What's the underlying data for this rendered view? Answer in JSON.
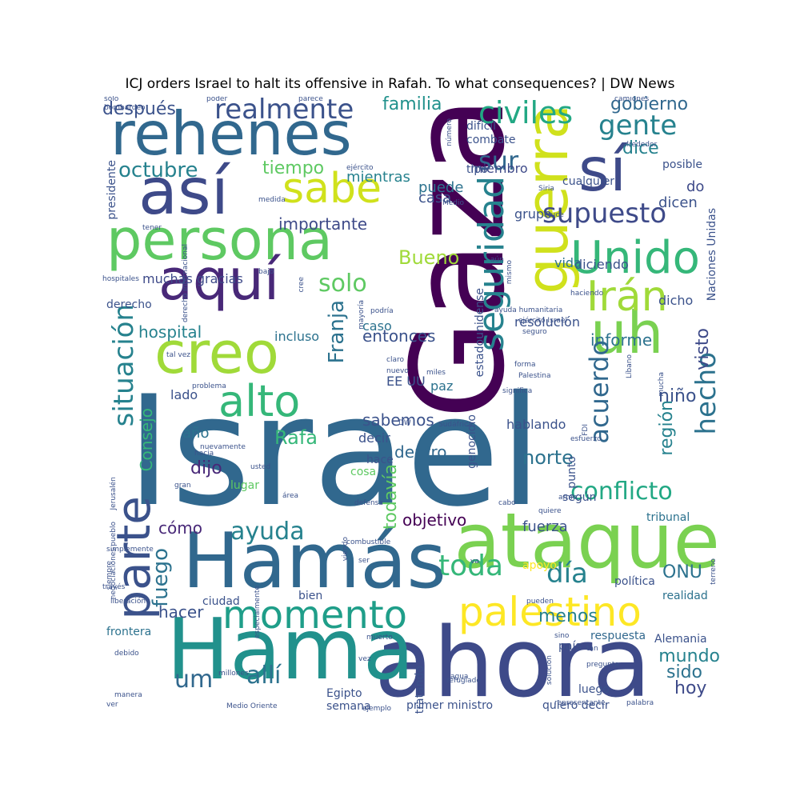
{
  "title": "ICJ orders Israel to halt its offensive in Rafah. To what consequences? | DW News",
  "words": [
    {
      "text": "Israel",
      "color": "#31688e"
    },
    {
      "text": "Gaza",
      "color": "#440154"
    },
    {
      "text": "ahora",
      "color": "#3e4a89"
    },
    {
      "text": "Hama",
      "color": "#21918c"
    },
    {
      "text": "Hamás",
      "color": "#31688e"
    },
    {
      "text": "ataque",
      "color": "#7ad151"
    },
    {
      "text": "rehenes",
      "color": "#31688e"
    },
    {
      "text": "persona",
      "color": "#5ec962"
    },
    {
      "text": "así",
      "color": "#3e4a89"
    },
    {
      "text": "sí",
      "color": "#3e4a89"
    },
    {
      "text": "parte",
      "color": "#3b528b"
    },
    {
      "text": "creo",
      "color": "#a0da39"
    },
    {
      "text": "aquí",
      "color": "#482878"
    },
    {
      "text": "guerra",
      "color": "#d0e11c"
    },
    {
      "text": "uh",
      "color": "#7ad151"
    },
    {
      "text": "momento",
      "color": "#1f9e89"
    },
    {
      "text": "palestino",
      "color": "#fde725"
    },
    {
      "text": "Unido",
      "color": "#35b779"
    },
    {
      "text": "seguridad",
      "color": "#26828e"
    },
    {
      "text": "Irán",
      "color": "#a0da39"
    },
    {
      "text": "alto",
      "color": "#35b779"
    },
    {
      "text": "sabe",
      "color": "#d0e11c"
    },
    {
      "text": "civiles",
      "color": "#22a884"
    },
    {
      "text": "realmente",
      "color": "#3b528b"
    },
    {
      "text": "supuesto",
      "color": "#3e4a89"
    },
    {
      "text": "gente",
      "color": "#26828e"
    },
    {
      "text": "situación",
      "color": "#26828e"
    },
    {
      "text": "hecho",
      "color": "#2c728e"
    },
    {
      "text": "acuerdo",
      "color": "#31688e"
    },
    {
      "text": "conflicto",
      "color": "#22a884"
    },
    {
      "text": "ayuda",
      "color": "#26828e"
    },
    {
      "text": "toda",
      "color": "#35b779"
    },
    {
      "text": "día",
      "color": "#26828e"
    },
    {
      "text": "allí",
      "color": "#2c728e"
    },
    {
      "text": "um",
      "color": "#31688e"
    },
    {
      "text": "Franja",
      "color": "#2c728e"
    },
    {
      "text": "Consejo",
      "color": "#35b779"
    },
    {
      "text": "fuego",
      "color": "#2c728e"
    },
    {
      "text": "solo",
      "color": "#5ec962"
    },
    {
      "text": "sur",
      "color": "#31688e"
    },
    {
      "text": "Bueno",
      "color": "#a0da39"
    },
    {
      "text": "octubre",
      "color": "#26828e"
    },
    {
      "text": "Rafa",
      "color": "#35b779"
    },
    {
      "text": "después",
      "color": "#3b528b"
    },
    {
      "text": "familia",
      "color": "#21918c"
    },
    {
      "text": "gobierno",
      "color": "#31688e"
    },
    {
      "text": "dice",
      "color": "#26828e"
    },
    {
      "text": "tiempo",
      "color": "#5ec962"
    },
    {
      "text": "todavía",
      "color": "#5ec962"
    },
    {
      "text": "visto",
      "color": "#3e4a89"
    },
    {
      "text": "región",
      "color": "#26828e"
    },
    {
      "text": "norte",
      "color": "#2c728e"
    },
    {
      "text": "dijo",
      "color": "#482878"
    },
    {
      "text": "ONU",
      "color": "#2c728e"
    },
    {
      "text": "hoy",
      "color": "#3e4a89"
    },
    {
      "text": "sido",
      "color": "#2c728e"
    },
    {
      "text": "mundo",
      "color": "#26828e"
    },
    {
      "text": "menos",
      "color": "#26828e"
    },
    {
      "text": "hacer",
      "color": "#3b528b"
    },
    {
      "text": "niño",
      "color": "#3b528b"
    },
    {
      "text": "informe",
      "color": "#2c728e"
    },
    {
      "text": "entonces",
      "color": "#3b528b"
    },
    {
      "text": "hospital",
      "color": "#26828e"
    },
    {
      "text": "importante",
      "color": "#3e4a89"
    },
    {
      "text": "objetivo",
      "color": "#440154"
    },
    {
      "text": "cómo",
      "color": "#482878"
    },
    {
      "text": "dentro",
      "color": "#31688e"
    },
    {
      "text": "sabemos",
      "color": "#3b528b"
    },
    {
      "text": "año",
      "color": "#2c728e"
    },
    {
      "text": "fuerza",
      "color": "#3b528b"
    },
    {
      "text": "do",
      "color": "#3e4a89"
    },
    {
      "text": "dicen",
      "color": "#3b528b"
    },
    {
      "text": "puede",
      "color": "#2c728e"
    },
    {
      "text": "casa",
      "color": "#3b528b"
    },
    {
      "text": "mientras",
      "color": "#26828e"
    },
    {
      "text": "muchas gracias",
      "color": "#3e4a89"
    },
    {
      "text": "miembro",
      "color": "#3e4a89"
    },
    {
      "text": "grupo",
      "color": "#3b528b"
    },
    {
      "text": "diciendo",
      "color": "#3b528b"
    },
    {
      "text": "vida",
      "color": "#2c728e"
    },
    {
      "text": "resolución",
      "color": "#3b528b"
    },
    {
      "text": "dicho",
      "color": "#3b528b"
    },
    {
      "text": "incluso",
      "color": "#2c728e"
    },
    {
      "text": "caso",
      "color": "#2c728e"
    },
    {
      "text": "EE UU",
      "color": "#3b528b"
    },
    {
      "text": "paz",
      "color": "#2c728e"
    },
    {
      "text": "lado",
      "color": "#3b528b"
    },
    {
      "text": "hablando",
      "color": "#3b528b"
    },
    {
      "text": "decir",
      "color": "#3b528b"
    },
    {
      "text": "hace",
      "color": "#3b528b"
    },
    {
      "text": "cosa",
      "color": "#5ec962"
    },
    {
      "text": "ciudad",
      "color": "#3b528b"
    },
    {
      "text": "bien",
      "color": "#3b528b"
    },
    {
      "text": "respuesta",
      "color": "#31688e"
    },
    {
      "text": "Alemania",
      "color": "#3b528b"
    },
    {
      "text": "política",
      "color": "#3b528b"
    },
    {
      "text": "realidad",
      "color": "#2c728e"
    },
    {
      "text": "tribunal",
      "color": "#2c728e"
    },
    {
      "text": "según",
      "color": "#3b528b"
    },
    {
      "text": "lugar",
      "color": "#5ec962"
    },
    {
      "text": "derecho",
      "color": "#3b528b"
    },
    {
      "text": "frontera",
      "color": "#2c728e"
    },
    {
      "text": "Egipto",
      "color": "#3b528b"
    },
    {
      "text": "primer ministro",
      "color": "#3b528b"
    },
    {
      "text": "quiero decir",
      "color": "#3b528b"
    },
    {
      "text": "semana",
      "color": "#3b528b"
    },
    {
      "text": "tratando",
      "color": "#3b528b"
    },
    {
      "text": "país",
      "color": "#3b528b"
    },
    {
      "text": "luego",
      "color": "#3b528b"
    },
    {
      "text": "difícil",
      "color": "#3b528b"
    },
    {
      "text": "combate",
      "color": "#3b528b"
    },
    {
      "text": "tipo",
      "color": "#3b528b"
    },
    {
      "text": "cualquier",
      "color": "#3b528b"
    },
    {
      "text": "posible",
      "color": "#3b528b"
    },
    {
      "text": "Naciones Unidas",
      "color": "#3b528b"
    },
    {
      "text": "presidente",
      "color": "#3b528b"
    },
    {
      "text": "estadounidense",
      "color": "#3b528b"
    },
    {
      "text": "genocidio",
      "color": "#3b528b"
    },
    {
      "text": "punto",
      "color": "#3b528b"
    },
    {
      "text": "apoyo",
      "color": "#fde725"
    },
    {
      "text": "sólo",
      "color": "#3b528b"
    },
    {
      "text": "bombardeo",
      "color": "#3b528b"
    },
    {
      "text": "poder",
      "color": "#3b528b"
    },
    {
      "text": "parece",
      "color": "#3b528b"
    },
    {
      "text": "camiones",
      "color": "#3b528b"
    },
    {
      "text": "alrededor",
      "color": "#3b528b"
    },
    {
      "text": "número",
      "color": "#3b528b"
    },
    {
      "text": "ejército",
      "color": "#3b528b"
    },
    {
      "text": "medida",
      "color": "#3b528b"
    },
    {
      "text": "Medio",
      "color": "#3b528b"
    },
    {
      "text": "Siria",
      "color": "#3b528b"
    },
    {
      "text": "cruce",
      "color": "#3b528b"
    },
    {
      "text": "tener",
      "color": "#3b528b"
    },
    {
      "text": "derecho internacional",
      "color": "#3b528b"
    },
    {
      "text": "aún",
      "color": "#3b528b"
    },
    {
      "text": "mismo",
      "color": "#3b528b"
    },
    {
      "text": "hospitales",
      "color": "#3b528b"
    },
    {
      "text": "bajo",
      "color": "#3b528b"
    },
    {
      "text": "cree",
      "color": "#3b528b"
    },
    {
      "text": "podría",
      "color": "#3b528b"
    },
    {
      "text": "mayoría",
      "color": "#3b528b"
    },
    {
      "text": "ayuda humanitaria",
      "color": "#3b528b"
    },
    {
      "text": "haciendo",
      "color": "#3b528b"
    },
    {
      "text": "ejército Israel",
      "color": "#3b528b"
    },
    {
      "text": "seguro",
      "color": "#3b528b"
    },
    {
      "text": "tal vez",
      "color": "#3b528b"
    },
    {
      "text": "claro",
      "color": "#3b528b"
    },
    {
      "text": "nuevo",
      "color": "#3b528b"
    },
    {
      "text": "miles",
      "color": "#3b528b"
    },
    {
      "text": "forma",
      "color": "#3b528b"
    },
    {
      "text": "Palestina",
      "color": "#3b528b"
    },
    {
      "text": "Líbano",
      "color": "#3b528b"
    },
    {
      "text": "mucha",
      "color": "#3b528b"
    },
    {
      "text": "problema",
      "color": "#3b528b"
    },
    {
      "text": "significa",
      "color": "#3b528b"
    },
    {
      "text": "DW",
      "color": "#3b528b"
    },
    {
      "text": "Sudáfrica",
      "color": "#3b528b"
    },
    {
      "text": "FDI",
      "color": "#3b528b"
    },
    {
      "text": "esfuerzo",
      "color": "#3b528b"
    },
    {
      "text": "nuevamente",
      "color": "#3b528b"
    },
    {
      "text": "hacia",
      "color": "#3b528b"
    },
    {
      "text": "Jerusalén",
      "color": "#3b528b"
    },
    {
      "text": "gran",
      "color": "#3b528b"
    },
    {
      "text": "área",
      "color": "#3b528b"
    },
    {
      "text": "defensa",
      "color": "#3b528b"
    },
    {
      "text": "cabo",
      "color": "#3b528b"
    },
    {
      "text": "pueblo",
      "color": "#3b528b"
    },
    {
      "text": "usted",
      "color": "#3b528b"
    },
    {
      "text": "arma",
      "color": "#3b528b"
    },
    {
      "text": "quiere",
      "color": "#3b528b"
    },
    {
      "text": "negociaciones",
      "color": "#3b528b"
    },
    {
      "text": "combustible",
      "color": "#3b528b"
    },
    {
      "text": "viendo",
      "color": "#3b528b"
    },
    {
      "text": "simplemente",
      "color": "#3b528b"
    },
    {
      "text": "siempre",
      "color": "#3b528b"
    },
    {
      "text": "especialmente",
      "color": "#3b528b"
    },
    {
      "text": "ser",
      "color": "#3b528b"
    },
    {
      "text": "va",
      "color": "#3b528b"
    },
    {
      "text": "terreno",
      "color": "#3b528b"
    },
    {
      "text": "través",
      "color": "#3b528b"
    },
    {
      "text": "liberación",
      "color": "#3b528b"
    },
    {
      "text": "pueden",
      "color": "#3b528b"
    },
    {
      "text": "sino",
      "color": "#3b528b"
    },
    {
      "text": "muerto",
      "color": "#3b528b"
    },
    {
      "text": "debido",
      "color": "#3b528b"
    },
    {
      "text": "tan",
      "color": "#3b528b"
    },
    {
      "text": "vez",
      "color": "#3b528b"
    },
    {
      "text": "solución",
      "color": "#3b528b"
    },
    {
      "text": "pregunta",
      "color": "#3b528b"
    },
    {
      "text": "millones",
      "color": "#3b528b"
    },
    {
      "text": "refugiado",
      "color": "#3b528b"
    },
    {
      "text": "manera",
      "color": "#3b528b"
    },
    {
      "text": "Medio Oriente",
      "color": "#3b528b"
    },
    {
      "text": "ejemplo",
      "color": "#3b528b"
    },
    {
      "text": "agua",
      "color": "#3b528b"
    },
    {
      "text": "ver",
      "color": "#3b528b"
    },
    {
      "text": "representante",
      "color": "#3b528b"
    },
    {
      "text": "palabra",
      "color": "#3b528b"
    },
    {
      "text": "fin",
      "color": "#3b528b"
    },
    {
      "text": "países",
      "color": "#3b528b"
    }
  ]
}
